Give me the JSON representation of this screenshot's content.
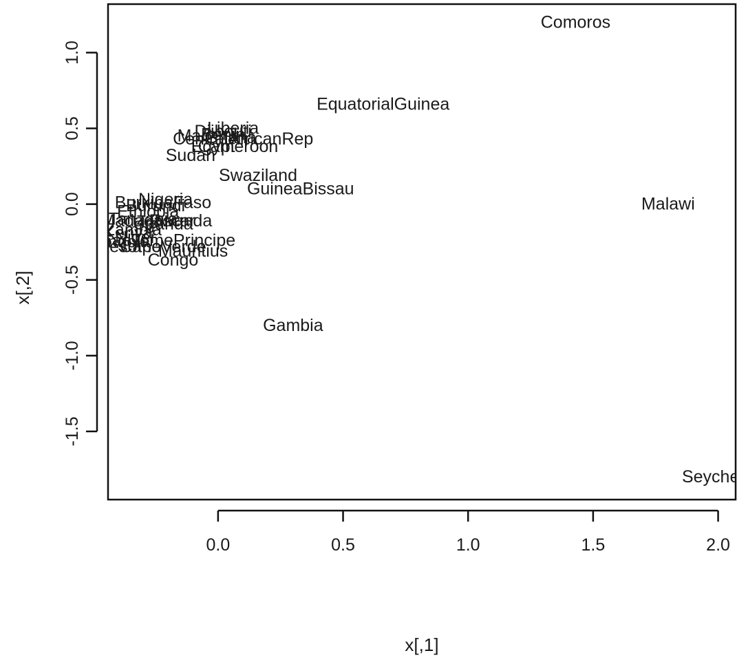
{
  "chart_data": {
    "type": "scatter",
    "title": "",
    "xlabel": "x[,1]",
    "ylabel": "x[,2]",
    "xlim": [
      -0.44,
      2.07
    ],
    "ylim": [
      -1.95,
      1.32
    ],
    "xticks": [
      0.0,
      0.5,
      1.0,
      1.5,
      2.0
    ],
    "xtick_labels": [
      "0.0",
      "0.5",
      "1.0",
      "1.5",
      "2.0"
    ],
    "yticks": [
      -1.5,
      -1.0,
      -0.5,
      0.0,
      0.5,
      1.0
    ],
    "ytick_labels": [
      "-1.5",
      "-1.0",
      "-0.5",
      "0.0",
      "0.5",
      "1.0"
    ],
    "grid": false,
    "legend": "none",
    "points": [
      {
        "label": "Comoros",
        "x": 1.43,
        "y": 1.2
      },
      {
        "label": "EquatorialGuinea",
        "x": 0.66,
        "y": 0.66
      },
      {
        "label": "Malawi",
        "x": 1.8,
        "y": 0.0
      },
      {
        "label": "Seyche",
        "x": 1.97,
        "y": -1.8
      },
      {
        "label": "Gambia",
        "x": 0.3,
        "y": -0.8
      },
      {
        "label": "Swaziland",
        "x": 0.16,
        "y": 0.19
      },
      {
        "label": "GuineaBissau",
        "x": 0.33,
        "y": 0.1
      },
      {
        "label": "Sudan",
        "x": -0.11,
        "y": 0.32
      },
      {
        "label": "Egypt",
        "x": -0.02,
        "y": 0.38
      },
      {
        "label": "Cameroon",
        "x": 0.08,
        "y": 0.38
      },
      {
        "label": "Mali",
        "x": -0.1,
        "y": 0.45
      },
      {
        "label": "Djibouti",
        "x": 0.02,
        "y": 0.48
      },
      {
        "label": "Liberia",
        "x": 0.06,
        "y": 0.5
      },
      {
        "label": "Ghana",
        "x": 0.05,
        "y": 0.44
      },
      {
        "label": "CentralAfricanRep",
        "x": 0.1,
        "y": 0.43
      },
      {
        "label": "Benin",
        "x": 0.02,
        "y": 0.46
      },
      {
        "label": "Nigeria",
        "x": -0.21,
        "y": 0.03
      },
      {
        "label": "BurkinaFaso",
        "x": -0.22,
        "y": 0.01
      },
      {
        "label": "Burundi",
        "x": -0.25,
        "y": -0.01
      },
      {
        "label": "Ethiopia",
        "x": -0.28,
        "y": -0.05
      },
      {
        "label": "Tanzania",
        "x": -0.3,
        "y": -0.1
      },
      {
        "label": "Madagascar",
        "x": -0.28,
        "y": -0.11
      },
      {
        "label": "Rwanda",
        "x": -0.15,
        "y": -0.11
      },
      {
        "label": "Uganda",
        "x": -0.22,
        "y": -0.13
      },
      {
        "label": "Zambia",
        "x": -0.34,
        "y": -0.17
      },
      {
        "label": "Kenya",
        "x": -0.36,
        "y": -0.19
      },
      {
        "label": "Niger",
        "x": -0.33,
        "y": -0.22
      },
      {
        "label": "SaoTomePrincipe",
        "x": -0.2,
        "y": -0.24
      },
      {
        "label": "CapeVerde",
        "x": -0.22,
        "y": -0.28
      },
      {
        "label": "Mauritius",
        "x": -0.1,
        "y": -0.31
      },
      {
        "label": "Lesotho",
        "x": -0.35,
        "y": -0.28
      },
      {
        "label": "Angola",
        "x": -0.38,
        "y": -0.25
      },
      {
        "label": "Congo",
        "x": -0.18,
        "y": -0.37
      }
    ]
  }
}
